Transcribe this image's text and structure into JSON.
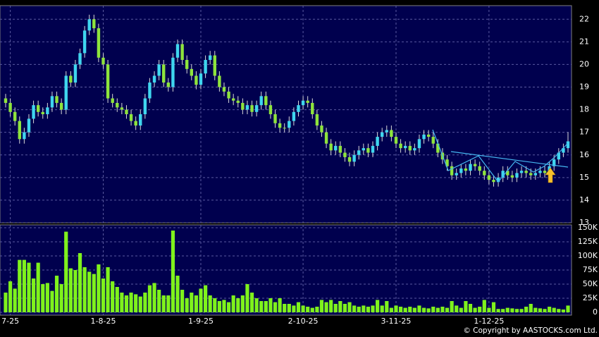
{
  "chart_data": {
    "type": "candlestick",
    "up_color": "#3fd6ef",
    "down_color": "#8ee43c",
    "volume_color": "#7ff21c",
    "grid": true,
    "xlim": [
      0,
      121
    ],
    "xticks": [
      {
        "value": 1,
        "label": "7-25"
      },
      {
        "value": 21,
        "label": "1-8-25"
      },
      {
        "value": 42,
        "label": "1-9-25"
      },
      {
        "value": 64,
        "label": "2-10-25"
      },
      {
        "value": 84,
        "label": "3-11-25"
      },
      {
        "value": 104,
        "label": "1-12-25"
      }
    ],
    "ylim": [
      13,
      22.6
    ],
    "yticks": [
      13,
      14,
      15,
      16,
      17,
      18,
      19,
      20,
      21,
      22
    ],
    "volume_ylim": [
      0,
      155000
    ],
    "volume_yticks": [
      {
        "value": 0,
        "label": "0"
      },
      {
        "value": 25000,
        "label": "25K"
      },
      {
        "value": 50000,
        "label": "50K"
      },
      {
        "value": 75000,
        "label": "75K"
      },
      {
        "value": 100000,
        "label": "100K"
      },
      {
        "value": 125000,
        "label": "125K"
      },
      {
        "value": 150000,
        "label": "150K"
      }
    ],
    "open": [
      18.5,
      18.3,
      17.9,
      17.5,
      16.7,
      17.0,
      17.6,
      18.2,
      17.9,
      17.8,
      18.1,
      18.6,
      18.3,
      18.0,
      19.5,
      19.2,
      20.0,
      20.5,
      21.5,
      22.0,
      21.6,
      20.3,
      20.0,
      18.5,
      18.3,
      18.1,
      18.0,
      17.8,
      17.5,
      17.3,
      17.8,
      18.5,
      19.2,
      19.5,
      20.0,
      19.2,
      19.0,
      20.3,
      20.9,
      20.2,
      19.8,
      19.5,
      19.1,
      19.6,
      20.2,
      20.4,
      19.5,
      19.0,
      18.8,
      18.5,
      18.4,
      18.3,
      18.0,
      18.2,
      17.9,
      18.2,
      18.6,
      18.2,
      17.8,
      17.4,
      17.2,
      17.2,
      17.5,
      17.9,
      18.2,
      18.4,
      18.3,
      17.8,
      17.3,
      17.0,
      16.5,
      16.2,
      16.4,
      16.1,
      15.9,
      15.7,
      16.0,
      16.2,
      16.3,
      16.1,
      16.4,
      16.8,
      17.0,
      17.1,
      16.8,
      16.5,
      16.3,
      16.4,
      16.2,
      16.3,
      16.7,
      16.9,
      16.8,
      16.5,
      16.1,
      15.8,
      15.5,
      15.1,
      15.2,
      15.4,
      15.3,
      15.6,
      15.5,
      15.3,
      15.1,
      14.9,
      14.8,
      15.0,
      15.3,
      15.1,
      15.0,
      15.2,
      15.3,
      15.2,
      15.1,
      15.2,
      15.3,
      15.2,
      15.5,
      15.8,
      16.1,
      16.3
    ],
    "high": [
      18.7,
      18.5,
      18.1,
      17.7,
      17.2,
      17.8,
      18.4,
      18.4,
      18.1,
      18.3,
      18.8,
      18.8,
      18.5,
      19.7,
      19.7,
      20.2,
      20.7,
      21.7,
      22.2,
      22.2,
      21.8,
      20.5,
      20.2,
      18.7,
      18.5,
      18.3,
      18.2,
      18.0,
      17.7,
      18.0,
      18.7,
      19.4,
      19.7,
      20.2,
      20.2,
      19.4,
      20.5,
      21.1,
      21.1,
      20.4,
      20.0,
      19.7,
      19.8,
      20.4,
      20.6,
      20.6,
      19.7,
      19.2,
      19.0,
      18.7,
      18.6,
      18.5,
      18.4,
      18.4,
      18.4,
      18.8,
      18.8,
      18.4,
      18.0,
      17.6,
      17.4,
      17.7,
      18.1,
      18.4,
      18.6,
      18.6,
      18.5,
      18.0,
      17.5,
      17.2,
      16.7,
      16.6,
      16.6,
      16.3,
      16.1,
      16.2,
      16.4,
      16.5,
      16.5,
      16.6,
      17.0,
      17.2,
      17.3,
      17.3,
      17.0,
      16.7,
      16.6,
      16.6,
      16.5,
      16.9,
      17.1,
      17.1,
      17.0,
      16.7,
      16.3,
      16.0,
      15.7,
      15.4,
      15.6,
      15.6,
      15.8,
      15.8,
      15.7,
      15.5,
      15.3,
      15.1,
      15.2,
      15.5,
      15.5,
      15.3,
      15.4,
      15.5,
      15.5,
      15.4,
      15.4,
      15.5,
      15.5,
      15.7,
      16.0,
      16.3,
      16.5,
      17.0
    ],
    "low": [
      18.1,
      17.7,
      17.3,
      16.5,
      16.5,
      16.8,
      17.4,
      17.7,
      17.6,
      17.6,
      17.9,
      18.1,
      17.8,
      17.8,
      19.0,
      19.0,
      19.8,
      20.3,
      21.3,
      21.4,
      20.1,
      19.8,
      18.3,
      18.1,
      17.9,
      17.8,
      17.6,
      17.3,
      17.1,
      17.1,
      17.6,
      18.3,
      19.0,
      19.3,
      19.0,
      18.8,
      18.8,
      20.1,
      20.0,
      19.6,
      19.3,
      18.9,
      18.9,
      19.4,
      20.0,
      19.3,
      18.8,
      18.6,
      18.3,
      18.2,
      18.1,
      17.8,
      17.8,
      17.7,
      17.7,
      18.0,
      18.0,
      17.6,
      17.2,
      17.0,
      17.0,
      17.0,
      17.3,
      17.7,
      18.0,
      18.1,
      17.6,
      17.1,
      16.8,
      16.3,
      16.0,
      16.0,
      15.9,
      15.7,
      15.5,
      15.5,
      15.8,
      16.0,
      15.9,
      15.9,
      16.2,
      16.6,
      16.8,
      16.6,
      16.3,
      16.1,
      16.1,
      16.0,
      16.0,
      16.1,
      16.5,
      16.6,
      16.3,
      15.9,
      15.6,
      15.3,
      14.9,
      14.9,
      15.0,
      15.1,
      15.1,
      15.3,
      15.1,
      14.9,
      14.7,
      14.6,
      14.6,
      14.8,
      14.9,
      14.8,
      14.8,
      15.0,
      15.0,
      14.9,
      14.9,
      15.0,
      15.0,
      15.0,
      15.3,
      15.6,
      15.9,
      16.1
    ],
    "close": [
      18.3,
      17.9,
      17.5,
      16.7,
      17.0,
      17.6,
      18.2,
      17.9,
      17.8,
      18.1,
      18.6,
      18.3,
      18.0,
      19.5,
      19.2,
      20.0,
      20.5,
      21.5,
      22.0,
      21.6,
      20.3,
      20.0,
      18.5,
      18.3,
      18.1,
      18.0,
      17.8,
      17.5,
      17.3,
      17.8,
      18.5,
      19.2,
      19.5,
      20.0,
      19.2,
      19.0,
      20.3,
      20.9,
      20.2,
      19.8,
      19.5,
      19.1,
      19.6,
      20.2,
      20.4,
      19.5,
      19.0,
      18.8,
      18.5,
      18.4,
      18.3,
      18.0,
      18.2,
      17.9,
      18.2,
      18.6,
      18.2,
      17.8,
      17.4,
      17.2,
      17.2,
      17.5,
      17.9,
      18.2,
      18.4,
      18.3,
      17.8,
      17.3,
      17.0,
      16.5,
      16.2,
      16.4,
      16.1,
      15.9,
      15.7,
      16.0,
      16.2,
      16.3,
      16.1,
      16.4,
      16.8,
      17.0,
      17.1,
      16.8,
      16.5,
      16.3,
      16.4,
      16.2,
      16.3,
      16.7,
      16.9,
      16.8,
      16.5,
      16.1,
      15.8,
      15.5,
      15.1,
      15.2,
      15.4,
      15.3,
      15.6,
      15.5,
      15.3,
      15.1,
      14.9,
      14.8,
      15.0,
      15.3,
      15.1,
      15.0,
      15.2,
      15.3,
      15.2,
      15.1,
      15.2,
      15.3,
      15.2,
      15.5,
      15.8,
      16.1,
      16.3,
      16.6
    ],
    "volume": [
      35000,
      55000,
      42000,
      93000,
      93000,
      88000,
      60000,
      88000,
      50000,
      52000,
      38000,
      65000,
      50000,
      143000,
      78000,
      75000,
      105000,
      80000,
      72000,
      68000,
      85000,
      60000,
      80000,
      55000,
      45000,
      35000,
      30000,
      35000,
      32000,
      28000,
      35000,
      48000,
      52000,
      40000,
      30000,
      30000,
      145000,
      65000,
      40000,
      25000,
      35000,
      30000,
      42000,
      48000,
      30000,
      25000,
      20000,
      22000,
      18000,
      30000,
      25000,
      30000,
      50000,
      35000,
      25000,
      20000,
      20000,
      25000,
      18000,
      25000,
      15000,
      15000,
      12000,
      18000,
      12000,
      10000,
      8000,
      10000,
      22000,
      18000,
      22000,
      15000,
      20000,
      15000,
      18000,
      12000,
      10000,
      12000,
      10000,
      12000,
      22000,
      12000,
      20000,
      8000,
      12000,
      10000,
      8000,
      10000,
      8000,
      12000,
      8000,
      7000,
      10000,
      8000,
      10000,
      8000,
      20000,
      12000,
      8000,
      20000,
      15000,
      8000,
      10000,
      22000,
      8000,
      18000,
      6000,
      6000,
      8000,
      7000,
      6000,
      6000,
      10000,
      15000,
      8000,
      7000,
      6000,
      10000,
      8000,
      6000,
      5000,
      12000
    ],
    "copyright": "© Copyright by AASTOCKS.com Ltd."
  }
}
